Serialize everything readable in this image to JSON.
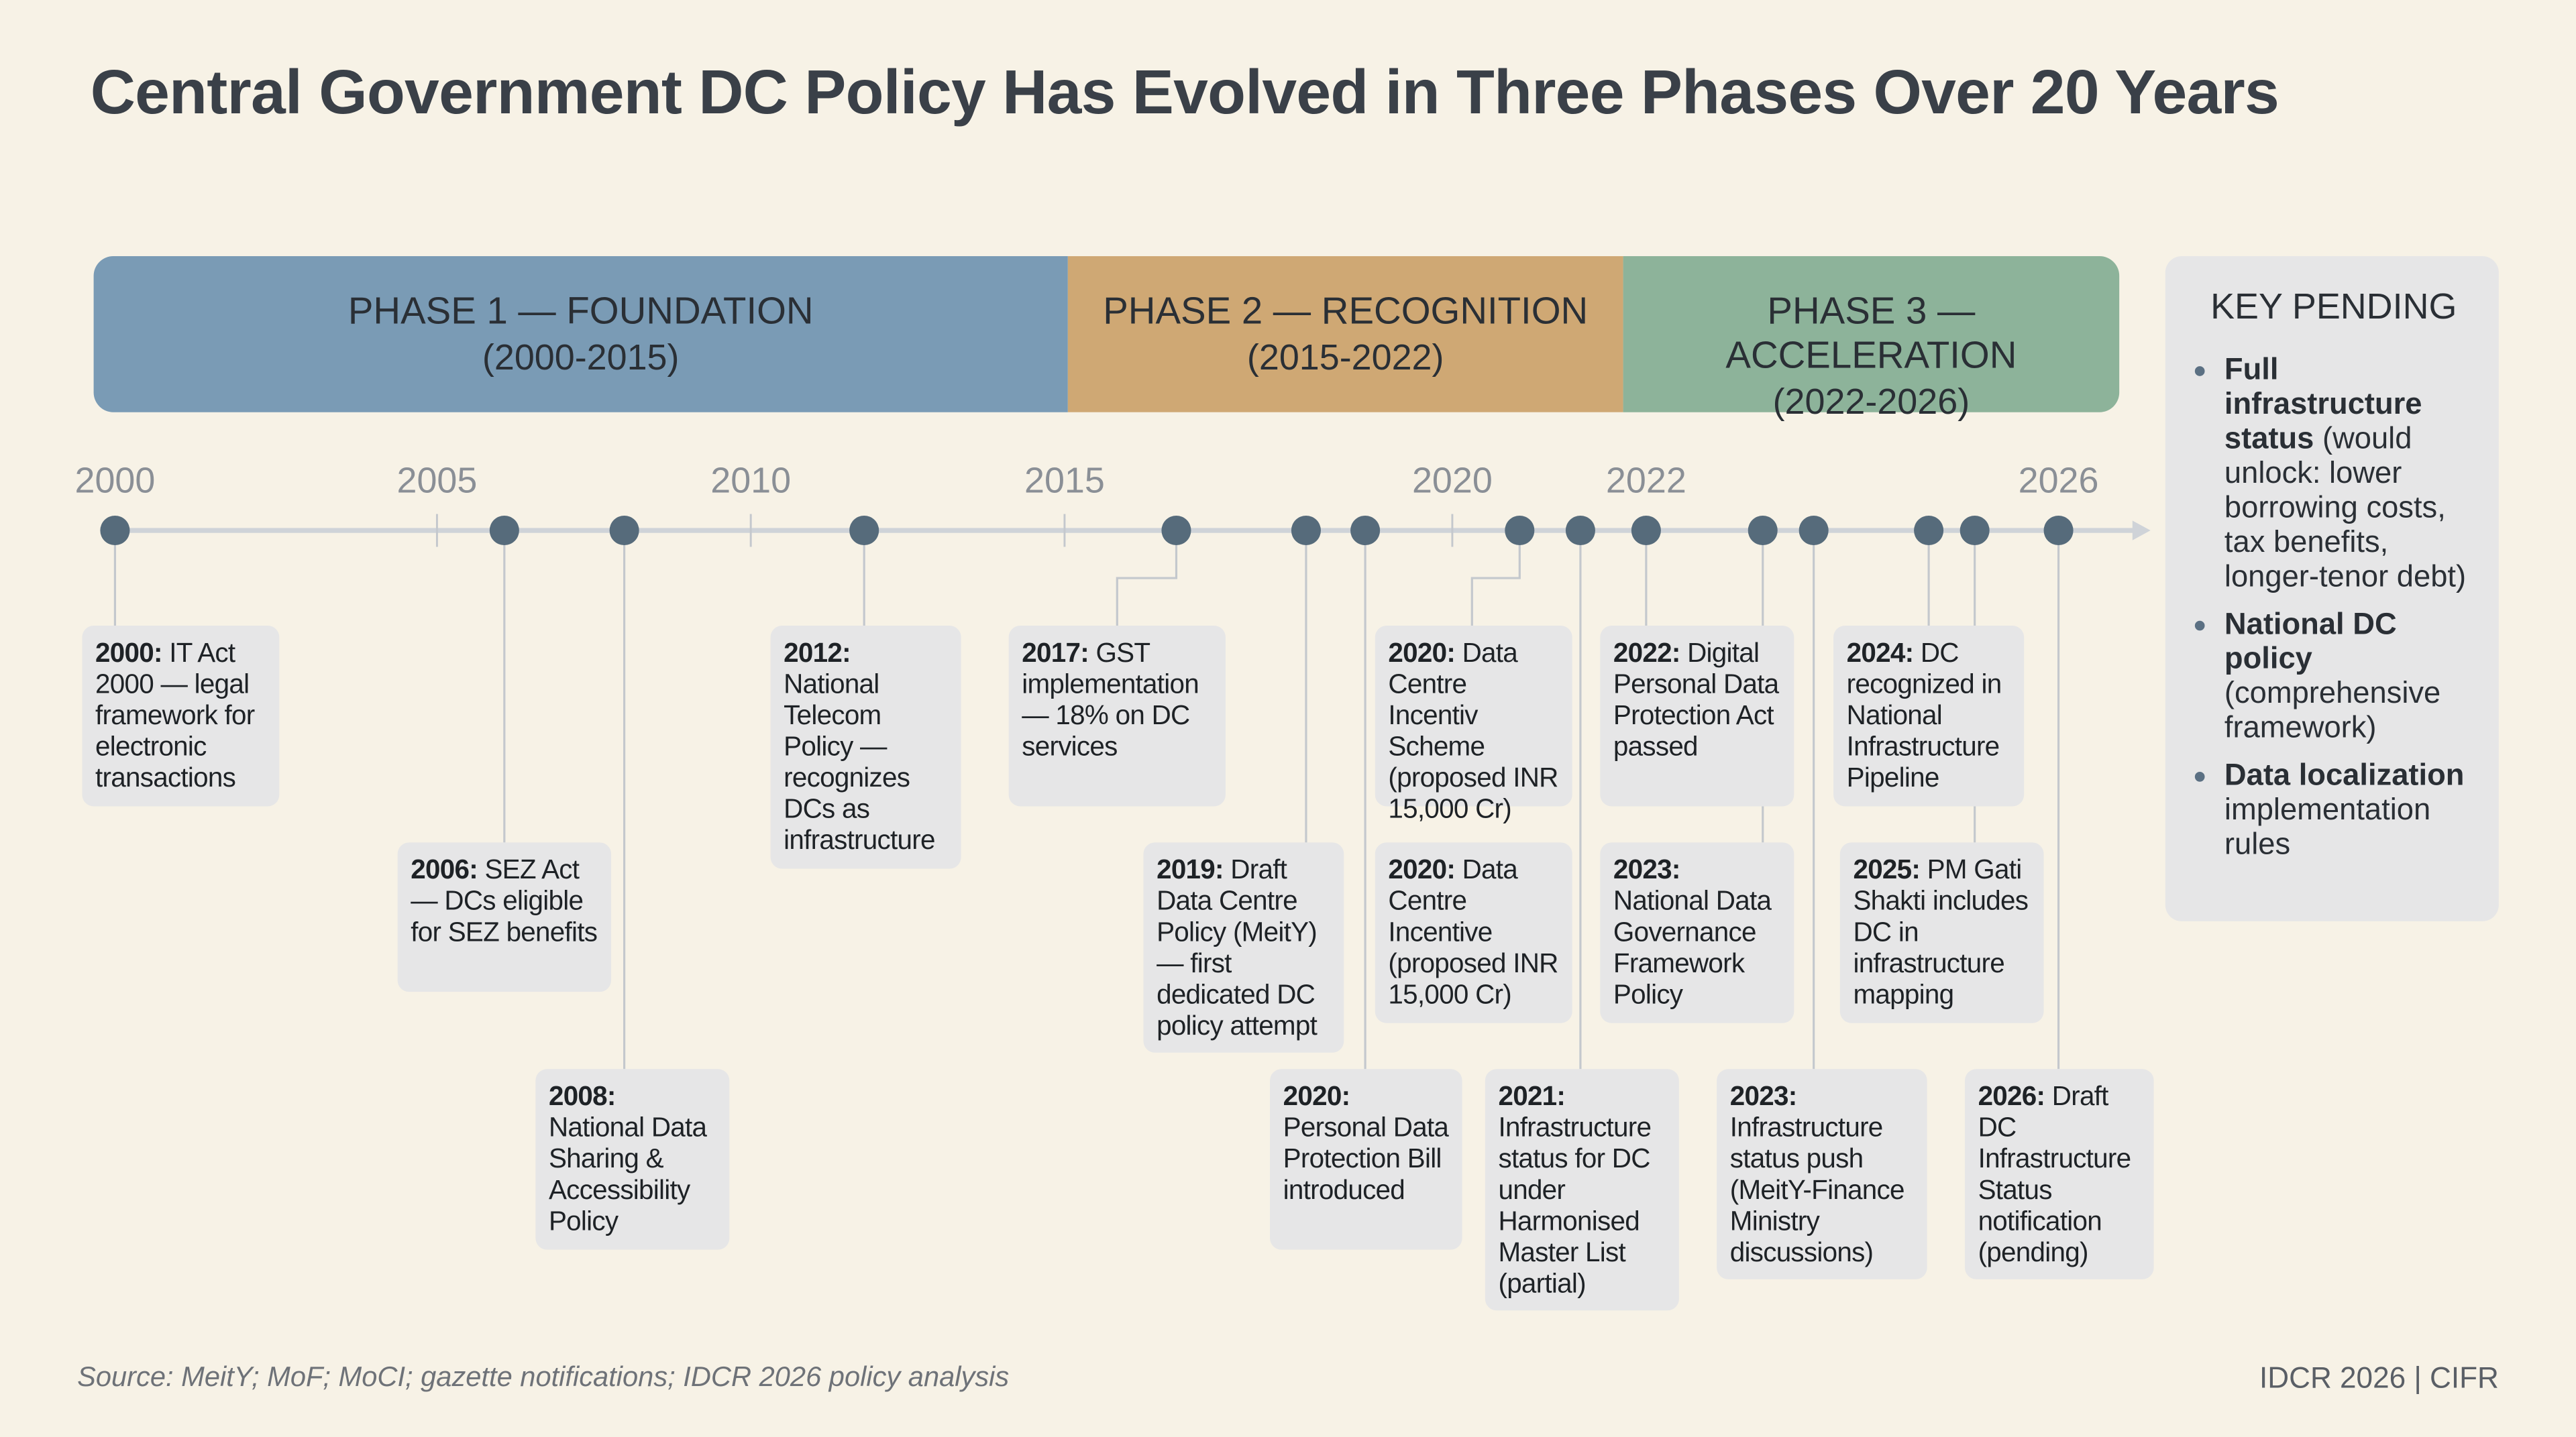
{
  "title": "Central Government DC Policy Has Evolved in Three Phases Over 20 Years",
  "phases": [
    {
      "label": "PHASE 1 — FOUNDATION",
      "years": "(2000-2015)"
    },
    {
      "label": "PHASE 2 — RECOGNITION",
      "years": "(2015-2022)"
    },
    {
      "label": "PHASE 3 — ACCELERATION",
      "years": "(2022-2026)"
    }
  ],
  "axis_labels": [
    "2000",
    "2005",
    "2010",
    "2015",
    "2020",
    "2022",
    "2026"
  ],
  "events": [
    {
      "year": "2000:",
      "text": "IT Act 2000 — legal framework for electronic transactions"
    },
    {
      "year": "2006:",
      "text": "SEZ Act — DCs eligible for SEZ benefits"
    },
    {
      "year": "2008:",
      "text": "National Data Sharing & Accessibility Policy"
    },
    {
      "year": "2012:",
      "text": "National Telecom Policy — recognizes DCs as infrastructure"
    },
    {
      "year": "2017:",
      "text": "GST implementation — 18% on DC services"
    },
    {
      "year": "2019:",
      "text": "Draft Data Centre Policy (MeitY) — first dedicated DC policy attempt"
    },
    {
      "year": "2020:",
      "text": "Personal Data Protection Bill introduced"
    },
    {
      "year": "2020:",
      "text": "Data Centre Incentiv Scheme (proposed INR 15,000 Cr)"
    },
    {
      "year": "2020:",
      "text": "Data Centre Incentive (proposed INR 15,000 Cr)"
    },
    {
      "year": "2021:",
      "text": "Infrastructure status for DC under Harmonised Master List (partial)"
    },
    {
      "year": "2022:",
      "text": "Digital Personal Data Protection Act passed"
    },
    {
      "year": "2023:",
      "text": "National Data Governance Framework Policy"
    },
    {
      "year": "2023:",
      "text": "Infrastructure status push (MeitY-Finance Ministry discussions)"
    },
    {
      "year": "2024:",
      "text": "DC recognized in National Infrastructure Pipeline"
    },
    {
      "year": "2025:",
      "text": "PM Gati Shakti includes DC in infrastructure mapping"
    },
    {
      "year": "2026:",
      "text": "Draft DC Infrastructure Status notification (pending)"
    }
  ],
  "key_pending": {
    "title": "KEY PENDING",
    "items": [
      {
        "bold": "Full infrastructure status",
        "text": "(would unlock: lower borrowing costs, tax benefits, longer-tenor debt)"
      },
      {
        "bold": "National DC policy",
        "text": "(comprehensive framework)"
      },
      {
        "bold": "Data localization",
        "text": "implementation rules"
      }
    ]
  },
  "source": "Source: MeitY; MoF; MoCI; gazette notifications; IDCR 2026 policy analysis",
  "credit": "IDCR 2026 | CIFR"
}
